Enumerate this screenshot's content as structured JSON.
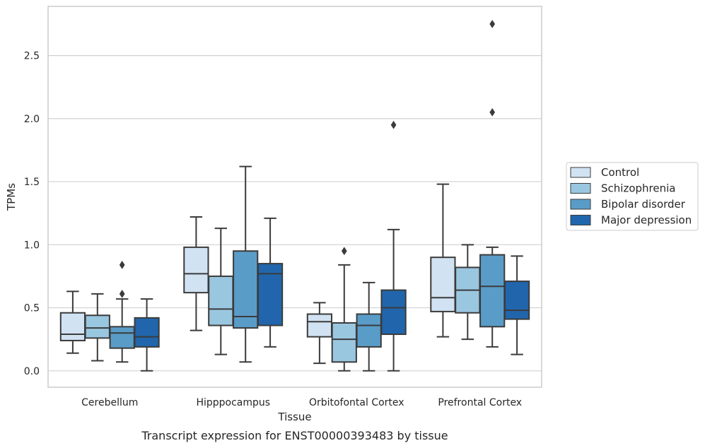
{
  "chart_data": {
    "type": "box",
    "title": "",
    "caption": "Transcript expression for ENST00000393483 by tissue",
    "xlabel": "Tissue",
    "ylabel": "TPMs",
    "ylim": [
      -0.13,
      2.89
    ],
    "yticks": [
      "0.0",
      "0.5",
      "1.0",
      "1.5",
      "2.0",
      "2.5"
    ],
    "grid": "horizontal",
    "legend_position": "right",
    "categories": [
      "Cerebellum",
      "Hipppocampus",
      "Orbitofontal Cortex",
      "Prefrontal Cortex"
    ],
    "series": [
      {
        "name": "Control",
        "color": "#d1e2f2",
        "boxes": [
          {
            "whislo": 0.14,
            "q1": 0.24,
            "med": 0.29,
            "q3": 0.46,
            "whishi": 0.63,
            "fliers": []
          },
          {
            "whislo": 0.32,
            "q1": 0.62,
            "med": 0.77,
            "q3": 0.98,
            "whishi": 1.22,
            "fliers": []
          },
          {
            "whislo": 0.06,
            "q1": 0.27,
            "med": 0.39,
            "q3": 0.45,
            "whishi": 0.54,
            "fliers": []
          },
          {
            "whislo": 0.27,
            "q1": 0.47,
            "med": 0.58,
            "q3": 0.9,
            "whishi": 1.48,
            "fliers": []
          }
        ]
      },
      {
        "name": "Schizophrenia",
        "color": "#9ac7e0",
        "boxes": [
          {
            "whislo": 0.08,
            "q1": 0.26,
            "med": 0.34,
            "q3": 0.44,
            "whishi": 0.61,
            "fliers": []
          },
          {
            "whislo": 0.13,
            "q1": 0.36,
            "med": 0.49,
            "q3": 0.75,
            "whishi": 1.13,
            "fliers": []
          },
          {
            "whislo": 0.0,
            "q1": 0.07,
            "med": 0.25,
            "q3": 0.38,
            "whishi": 0.84,
            "fliers": [
              0.95
            ]
          },
          {
            "whislo": 0.25,
            "q1": 0.46,
            "med": 0.64,
            "q3": 0.82,
            "whishi": 1.0,
            "fliers": []
          }
        ]
      },
      {
        "name": "Bipolar disorder",
        "color": "#5a9cc8",
        "boxes": [
          {
            "whislo": 0.07,
            "q1": 0.18,
            "med": 0.3,
            "q3": 0.35,
            "whishi": 0.57,
            "fliers": [
              0.61,
              0.84
            ]
          },
          {
            "whislo": 0.07,
            "q1": 0.34,
            "med": 0.43,
            "q3": 0.95,
            "whishi": 1.62,
            "fliers": []
          },
          {
            "whislo": 0.0,
            "q1": 0.19,
            "med": 0.36,
            "q3": 0.45,
            "whishi": 0.7,
            "fliers": []
          },
          {
            "whislo": 0.19,
            "q1": 0.35,
            "med": 0.67,
            "q3": 0.92,
            "whishi": 0.98,
            "fliers": [
              2.05,
              2.75
            ]
          }
        ]
      },
      {
        "name": "Major depression",
        "color": "#2166ac",
        "boxes": [
          {
            "whislo": 0.0,
            "q1": 0.19,
            "med": 0.27,
            "q3": 0.42,
            "whishi": 0.57,
            "fliers": []
          },
          {
            "whislo": 0.19,
            "q1": 0.36,
            "med": 0.77,
            "q3": 0.85,
            "whishi": 1.21,
            "fliers": []
          },
          {
            "whislo": 0.0,
            "q1": 0.29,
            "med": 0.5,
            "q3": 0.64,
            "whishi": 1.12,
            "fliers": [
              1.95
            ]
          },
          {
            "whislo": 0.13,
            "q1": 0.41,
            "med": 0.48,
            "q3": 0.71,
            "whishi": 0.91,
            "fliers": []
          }
        ]
      }
    ]
  }
}
